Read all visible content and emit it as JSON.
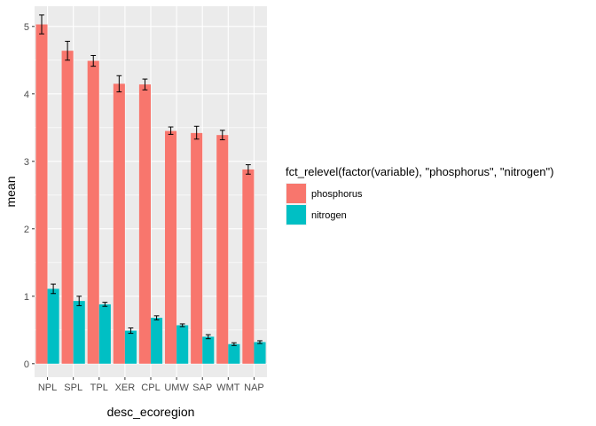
{
  "chart_data": {
    "type": "bar",
    "xlabel": "desc_ecoregion",
    "ylabel": "mean",
    "ylim": [
      -0.2,
      5.3
    ],
    "yticks": [
      0,
      1,
      2,
      3,
      4,
      5
    ],
    "categories": [
      "NPL",
      "SPL",
      "TPL",
      "XER",
      "CPL",
      "UMW",
      "SAP",
      "WMT",
      "NAP"
    ],
    "legend": {
      "title": "fct_relevel(factor(variable), \"phosphorus\", \"nitrogen\")",
      "position": "right"
    },
    "series": [
      {
        "name": "phosphorus",
        "color": "#F8766D",
        "values": [
          5.03,
          4.64,
          4.49,
          4.15,
          4.14,
          3.45,
          3.42,
          3.39,
          2.88
        ],
        "error_low": [
          4.89,
          4.5,
          4.41,
          4.03,
          4.06,
          3.4,
          3.33,
          3.32,
          2.81
        ],
        "error_high": [
          5.17,
          4.78,
          4.57,
          4.27,
          4.22,
          3.51,
          3.52,
          3.46,
          2.95
        ]
      },
      {
        "name": "nitrogen",
        "color": "#00BFC4",
        "values": [
          1.11,
          0.93,
          0.88,
          0.49,
          0.68,
          0.57,
          0.4,
          0.29,
          0.32
        ],
        "error_low": [
          1.04,
          0.86,
          0.85,
          0.45,
          0.65,
          0.55,
          0.37,
          0.27,
          0.3
        ],
        "error_high": [
          1.18,
          1.0,
          0.91,
          0.53,
          0.71,
          0.59,
          0.43,
          0.31,
          0.34
        ]
      }
    ],
    "panel_background": "#EBEBEB",
    "grid": true
  }
}
